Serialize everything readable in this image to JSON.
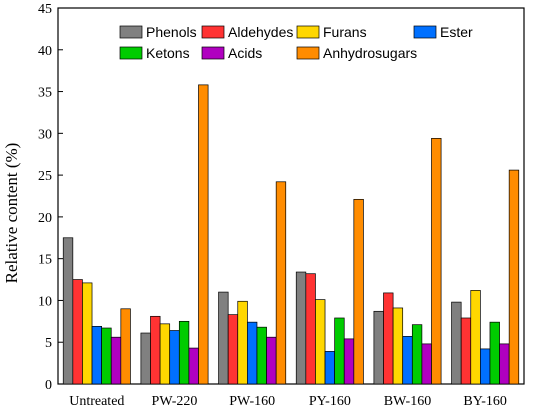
{
  "chart_data": {
    "type": "bar",
    "title": "",
    "xlabel": "",
    "ylabel": "Relative content (%)",
    "ylim": [
      0,
      45
    ],
    "yticks": [
      0,
      5,
      10,
      15,
      20,
      25,
      30,
      35,
      40,
      45
    ],
    "grid": false,
    "legend_placement": "top",
    "categories": [
      "Untreated",
      "PW-220",
      "PW-160",
      "PY-160",
      "BW-160",
      "BY-160"
    ],
    "series": [
      {
        "name": "Phenols",
        "color": "#808080",
        "values": [
          17.5,
          6.1,
          11.0,
          13.4,
          8.7,
          9.8
        ]
      },
      {
        "name": "Aldehydes",
        "color": "#ff3333",
        "values": [
          12.5,
          8.1,
          8.3,
          13.2,
          10.9,
          7.9
        ]
      },
      {
        "name": "Furans",
        "color": "#ffd700",
        "values": [
          12.1,
          7.2,
          9.9,
          10.1,
          9.1,
          11.2
        ]
      },
      {
        "name": "Ester",
        "color": "#0070ff",
        "values": [
          6.9,
          6.4,
          7.4,
          3.9,
          5.7,
          4.2
        ]
      },
      {
        "name": "Ketons",
        "color": "#00cc00",
        "values": [
          6.7,
          7.5,
          6.8,
          7.9,
          7.1,
          7.4
        ]
      },
      {
        "name": "Acids",
        "color": "#b000c0",
        "values": [
          5.6,
          4.3,
          5.6,
          5.4,
          4.8,
          4.8
        ]
      },
      {
        "name": "Anhydrosugars",
        "color": "#ff8c00",
        "values": [
          9.0,
          35.8,
          24.2,
          22.1,
          29.4,
          25.6
        ]
      }
    ]
  }
}
